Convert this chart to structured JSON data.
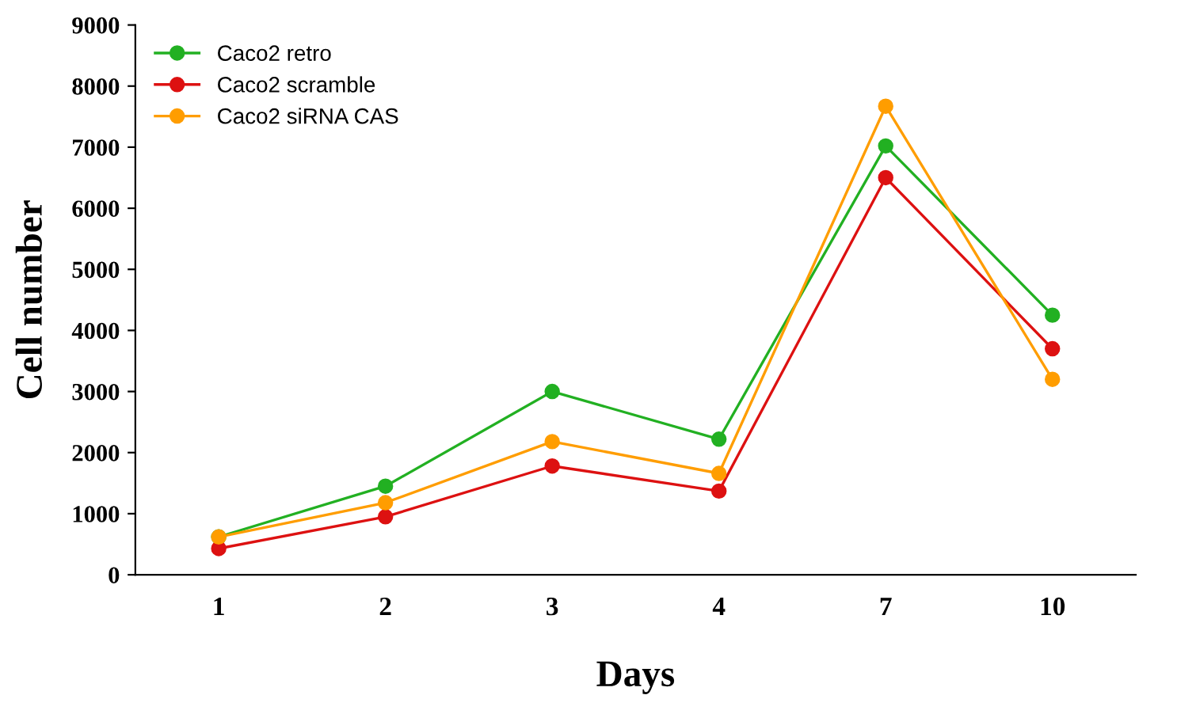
{
  "chart_data": {
    "type": "line",
    "xlabel": "Days",
    "ylabel": "Cell number",
    "categories": [
      "1",
      "2",
      "3",
      "4",
      "7",
      "10"
    ],
    "series": [
      {
        "name": "Caco2 retro",
        "color": "#22b022",
        "values": [
          620,
          1450,
          3000,
          2220,
          7020,
          4250
        ]
      },
      {
        "name": "Caco2 scramble",
        "color": "#dd1111",
        "values": [
          430,
          950,
          1780,
          1370,
          6500,
          3700
        ]
      },
      {
        "name": "Caco2 siRNA CAS",
        "color": "#ff9d00",
        "values": [
          620,
          1180,
          2180,
          1660,
          7670,
          3200
        ]
      }
    ],
    "ylim": [
      0,
      9000
    ],
    "yticks": [
      0,
      1000,
      2000,
      3000,
      4000,
      5000,
      6000,
      7000,
      8000,
      9000
    ],
    "grid": false,
    "legend": "top left",
    "marker": "circle",
    "line_style": "solid"
  }
}
